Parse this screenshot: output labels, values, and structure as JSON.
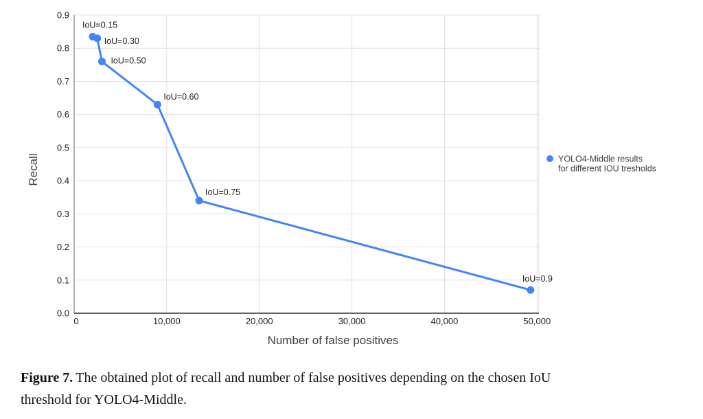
{
  "caption": {
    "label": "Figure 7.",
    "line1_after_label": "The obtained plot of recall and number of false positives depending on the chosen IoU",
    "line2": "threshold for YOLO4-Middle."
  },
  "chart_data": {
    "type": "line",
    "title": "",
    "xlabel": "Number of false positives",
    "ylabel": "Recall",
    "xlim": [
      0,
      50200
    ],
    "ylim": [
      0,
      0.9
    ],
    "x_tick_values": [
      0,
      10000,
      20000,
      30000,
      40000,
      50000
    ],
    "x_tick_labels": [
      "0",
      "10,000",
      "20,000",
      "30,000",
      "40,000",
      "50,000"
    ],
    "y_tick_values": [
      0,
      0.1,
      0.2,
      0.3,
      0.4,
      0.5,
      0.6,
      0.7,
      0.8,
      0.9
    ],
    "y_tick_labels": [
      "0.0",
      "0.1",
      "0.2",
      "0.3",
      "0.4",
      "0.5",
      "0.6",
      "0.7",
      "0.8",
      "0.9"
    ],
    "grid": true,
    "legend": {
      "position": "right",
      "lines": [
        "YOLO4-Middle results",
        "for different IOU tresholds"
      ]
    },
    "series": [
      {
        "name": "YOLO4-Middle results for different IOU tresholds",
        "color": "#4285f4",
        "points": [
          {
            "x": 2000,
            "y": 0.835,
            "label": "IoU=0.15",
            "label_dx": -15,
            "label_dy": -13
          },
          {
            "x": 2500,
            "y": 0.83,
            "label": "IoU=0.30",
            "label_dx": 10,
            "label_dy": 8
          },
          {
            "x": 3000,
            "y": 0.76,
            "label": "IoU=0.50",
            "label_dx": 13,
            "label_dy": 3
          },
          {
            "x": 9000,
            "y": 0.63,
            "label": "IoU=0.60",
            "label_dx": 9,
            "label_dy": -7
          },
          {
            "x": 13500,
            "y": 0.34,
            "label": "IoU=0.75",
            "label_dx": 9,
            "label_dy": -8
          },
          {
            "x": 49300,
            "y": 0.07,
            "label": "IoU=0.9",
            "label_dx": -12,
            "label_dy": -12
          }
        ]
      }
    ],
    "colors": {
      "series": "#4285f4",
      "grid": "#e0e0e0",
      "y_axis_line": "#9e9e9e",
      "x_axis_line": "#616161",
      "tick_text": "#202124",
      "point_label_text": "#1f1f1f",
      "axis_title_text": "#3c4043",
      "legend_text": "#3c4043",
      "background": "#ffffff"
    }
  }
}
